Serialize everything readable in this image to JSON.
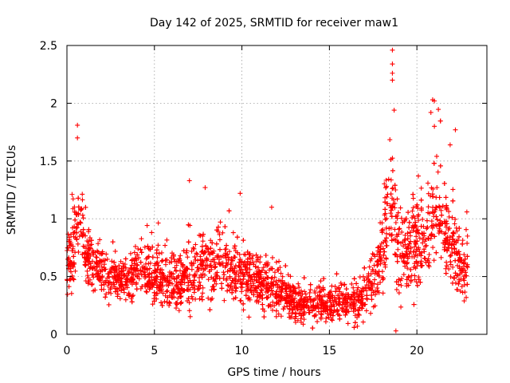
{
  "chart_data": {
    "type": "scatter",
    "title": "Day 142 of 2025, SRMTID for receiver maw1",
    "xlabel": "GPS time / hours",
    "ylabel": "SRMTID / TECUs",
    "xlim": [
      0,
      24
    ],
    "ylim": [
      0,
      2.5
    ],
    "x_ticks": [
      0,
      5,
      10,
      15,
      20
    ],
    "y_ticks": [
      0,
      0.5,
      1,
      1.5,
      2,
      2.5
    ],
    "x_tick_labels": [
      "0",
      "5",
      "10",
      "15",
      "20"
    ],
    "y_tick_labels": [
      "0",
      "0.5",
      "1",
      "1.5",
      "2",
      "2.5"
    ],
    "grid": true,
    "marker": "+",
    "color": "#ff0000",
    "series": [
      {
        "name": "maw1",
        "points_note": "approximately 3000 samples",
        "envelope": [
          {
            "t": 0.0,
            "mean": 0.6,
            "spread": 0.28
          },
          {
            "t": 0.4,
            "mean": 0.75,
            "spread": 0.4
          },
          {
            "t": 0.7,
            "mean": 1.1,
            "spread": 0.35
          },
          {
            "t": 1.0,
            "mean": 0.75,
            "spread": 0.3
          },
          {
            "t": 1.5,
            "mean": 0.6,
            "spread": 0.25
          },
          {
            "t": 2.5,
            "mean": 0.48,
            "spread": 0.2
          },
          {
            "t": 3.5,
            "mean": 0.48,
            "spread": 0.2
          },
          {
            "t": 4.3,
            "mean": 0.6,
            "spread": 0.3
          },
          {
            "t": 5.0,
            "mean": 0.5,
            "spread": 0.25
          },
          {
            "t": 6.0,
            "mean": 0.45,
            "spread": 0.25
          },
          {
            "t": 7.0,
            "mean": 0.48,
            "spread": 0.3
          },
          {
            "t": 8.0,
            "mean": 0.6,
            "spread": 0.3
          },
          {
            "t": 9.0,
            "mean": 0.6,
            "spread": 0.3
          },
          {
            "t": 10.0,
            "mean": 0.5,
            "spread": 0.3
          },
          {
            "t": 11.0,
            "mean": 0.45,
            "spread": 0.28
          },
          {
            "t": 12.0,
            "mean": 0.38,
            "spread": 0.22
          },
          {
            "t": 13.0,
            "mean": 0.3,
            "spread": 0.18
          },
          {
            "t": 14.0,
            "mean": 0.26,
            "spread": 0.15
          },
          {
            "t": 15.0,
            "mean": 0.28,
            "spread": 0.18
          },
          {
            "t": 16.0,
            "mean": 0.27,
            "spread": 0.18
          },
          {
            "t": 17.0,
            "mean": 0.3,
            "spread": 0.2
          },
          {
            "t": 17.8,
            "mean": 0.6,
            "spread": 0.35
          },
          {
            "t": 18.5,
            "mean": 1.2,
            "spread": 0.5
          },
          {
            "t": 18.9,
            "mean": 0.7,
            "spread": 0.5
          },
          {
            "t": 19.5,
            "mean": 0.7,
            "spread": 0.4
          },
          {
            "t": 20.5,
            "mean": 0.85,
            "spread": 0.45
          },
          {
            "t": 21.0,
            "mean": 1.1,
            "spread": 0.5
          },
          {
            "t": 21.5,
            "mean": 0.9,
            "spread": 0.45
          },
          {
            "t": 22.0,
            "mean": 0.8,
            "spread": 0.4
          },
          {
            "t": 22.5,
            "mean": 0.55,
            "spread": 0.3
          },
          {
            "t": 22.9,
            "mean": 0.6,
            "spread": 0.35
          }
        ],
        "highlighted_points": [
          {
            "x": 0.6,
            "y": 1.81
          },
          {
            "x": 0.6,
            "y": 1.7
          },
          {
            "x": 7.0,
            "y": 1.33
          },
          {
            "x": 7.9,
            "y": 1.27
          },
          {
            "x": 9.9,
            "y": 1.22
          },
          {
            "x": 11.7,
            "y": 1.1
          },
          {
            "x": 18.6,
            "y": 2.46
          },
          {
            "x": 18.6,
            "y": 2.34
          },
          {
            "x": 18.6,
            "y": 2.26
          },
          {
            "x": 18.6,
            "y": 2.2
          },
          {
            "x": 18.7,
            "y": 1.94
          },
          {
            "x": 20.9,
            "y": 2.03
          },
          {
            "x": 21.0,
            "y": 2.02
          },
          {
            "x": 20.8,
            "y": 1.92
          },
          {
            "x": 21.0,
            "y": 1.8
          },
          {
            "x": 22.2,
            "y": 1.77
          },
          {
            "x": 21.9,
            "y": 1.64
          },
          {
            "x": 18.8,
            "y": 0.03
          },
          {
            "x": 16.6,
            "y": 0.07
          },
          {
            "x": 13.2,
            "y": 0.12
          }
        ]
      }
    ]
  }
}
